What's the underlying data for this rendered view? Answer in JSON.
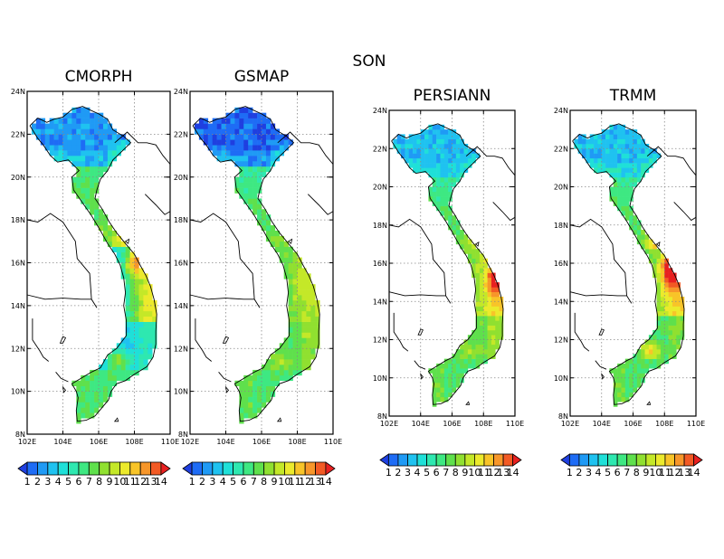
{
  "figure": {
    "season": "SON"
  },
  "chart_data": {
    "type": "heatmap",
    "lon_range": [
      102,
      110
    ],
    "lat_range": [
      8,
      24
    ],
    "lon_ticks": [
      "102E",
      "104E",
      "106E",
      "108E",
      "110E"
    ],
    "lat_ticks": [
      "8N",
      "10N",
      "12N",
      "14N",
      "16N",
      "18N",
      "20N",
      "22N",
      "24N"
    ],
    "grid": "dotted",
    "colorbar": {
      "labels": [
        "1",
        "2",
        "3",
        "4",
        "5",
        "6",
        "7",
        "8",
        "9",
        "10",
        "11",
        "12",
        "13",
        "14"
      ],
      "colors": [
        "#1f3fe0",
        "#1e6cf5",
        "#1f9af5",
        "#1fc2f0",
        "#1fe0d8",
        "#2ee8b0",
        "#3ee882",
        "#5fe04c",
        "#90e030",
        "#c4e828",
        "#ecea2c",
        "#f8c428",
        "#f7962a",
        "#f25a24",
        "#e82020"
      ],
      "extend": "both"
    },
    "panels": [
      {
        "name": "CMORPH",
        "north": "low",
        "central_coast": "high",
        "south": "low-medium"
      },
      {
        "name": "GSMAP",
        "north": "lowest",
        "central_coast": "medium",
        "south": "medium"
      },
      {
        "name": "PERSIANN",
        "north": "low",
        "central_coast": "high",
        "south": "medium"
      },
      {
        "name": "TRMM",
        "north": "low",
        "central_coast": "very high",
        "south": "medium"
      }
    ]
  }
}
